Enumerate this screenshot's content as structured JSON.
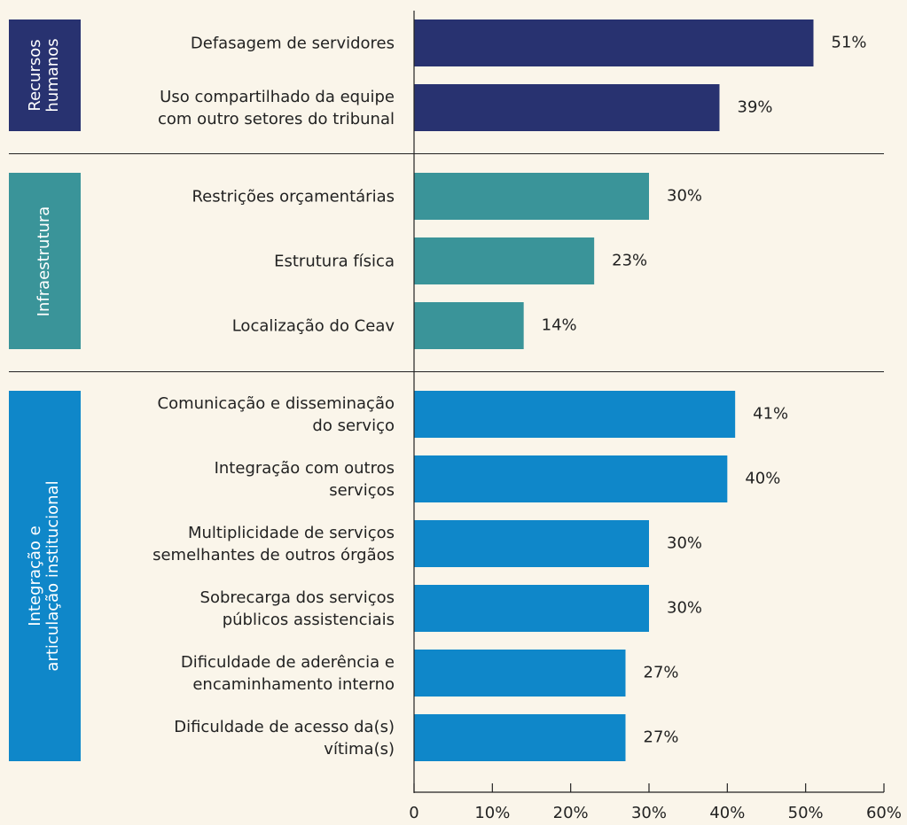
{
  "chart_data": {
    "type": "bar",
    "orientation": "horizontal",
    "xlim": [
      0,
      60
    ],
    "xticks": [
      0,
      {
        "value": 10,
        "label": "10%"
      },
      {
        "value": 20,
        "label": "20%"
      },
      {
        "value": 30,
        "label": "30%"
      },
      {
        "value": 40,
        "label": "40%"
      },
      {
        "value": 50,
        "label": "50%"
      },
      {
        "value": 60,
        "label": "60%"
      }
    ],
    "groups": [
      {
        "name": "Recursos\nhumanos",
        "color": "#283270",
        "categories": [
          "Defasagem de servidores",
          "Uso compartilhado da equipe\ncom outro setores do tribunal"
        ],
        "values": [
          51,
          39
        ],
        "value_labels": [
          "51%",
          "39%"
        ]
      },
      {
        "name": "Infraestrutura",
        "color": "#3a9499",
        "categories": [
          "Restrições orçamentárias",
          "Estrutura física",
          "Localização do Ceav"
        ],
        "values": [
          30,
          23,
          14
        ],
        "value_labels": [
          "30%",
          "23%",
          "14%"
        ]
      },
      {
        "name": "Integração e\narticulação institucional",
        "color": "#0f87c9",
        "categories": [
          "Comunicação e disseminação\ndo serviço",
          "Integração com outros\nserviços",
          "Multiplicidade de serviços\nsemelhantes de outros órgãos",
          "Sobrecarga dos serviços\npúblicos assistenciais",
          "Dificuldade de aderência e\nencaminhamento interno",
          "Dificuldade de acesso da(s)\nvítima(s)"
        ],
        "values": [
          41,
          40,
          30,
          30,
          27,
          27
        ],
        "value_labels": [
          "41%",
          "40%",
          "30%",
          "30%",
          "27%",
          "27%"
        ]
      }
    ]
  }
}
